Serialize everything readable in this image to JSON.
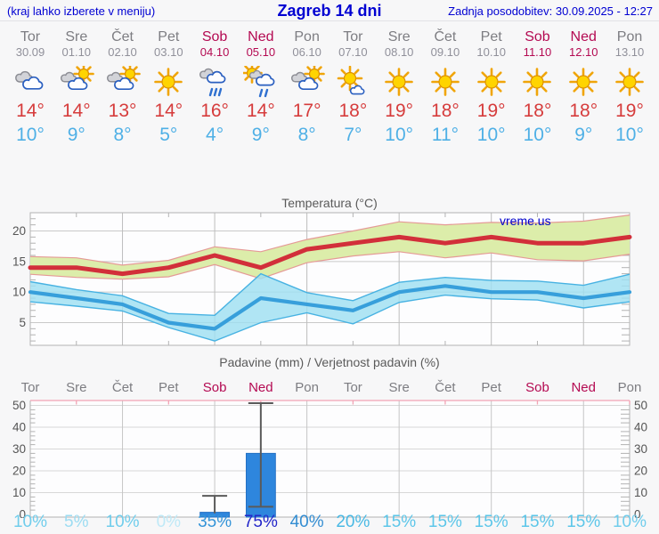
{
  "header": {
    "hint": "(kraj lahko izberete v meniju)",
    "title": "Zagreb 14 dni",
    "updated": "Zadnja posodobitev: 30.09.2025 - 12:27"
  },
  "watermark": "vreme.us",
  "colors": {
    "header_blue": "#0000d2",
    "weekend_day": "#b40a52",
    "weekday_gray": "#7d7d82",
    "tmax_red": "#d63c3c",
    "tmin_blue": "#4fb0e6",
    "red_line": "#d22f3a",
    "red_band_fill": "#dcedaa",
    "red_band_edge": "#e59a96",
    "blue_line": "#379fdb",
    "blue_band_fill": "#9fdff2",
    "blue_band_edge": "#47b2e2",
    "bar_fill": "#2e86dd",
    "bar_edge": "#2571c4",
    "whisker": "#5a5a5a",
    "grid": "#c9c9c9",
    "spine": "#b3b3b3",
    "pink_spine": "#f2a3b4",
    "axis_text": "#555555",
    "plot_bg": "#fdfdfe"
  },
  "days": [
    {
      "name": "Tor",
      "date": "30.09",
      "weekend": false,
      "icon": "cloudy",
      "tmax": "14°",
      "tmin": "10°",
      "prob": "10%",
      "prob_color": "#70cdec"
    },
    {
      "name": "Sre",
      "date": "01.10",
      "weekend": false,
      "icon": "sun-clouds",
      "tmax": "14°",
      "tmin": "9°",
      "prob": "5%",
      "prob_color": "#9cdcf2"
    },
    {
      "name": "Čet",
      "date": "02.10",
      "weekend": false,
      "icon": "sun-clouds",
      "tmax": "13°",
      "tmin": "8°",
      "prob": "10%",
      "prob_color": "#70cdec"
    },
    {
      "name": "Pet",
      "date": "03.10",
      "weekend": false,
      "icon": "sunny",
      "tmax": "14°",
      "tmin": "5°",
      "prob": "0%",
      "prob_color": "#bfe9f7"
    },
    {
      "name": "Sob",
      "date": "04.10",
      "weekend": true,
      "icon": "rain",
      "tmax": "16°",
      "tmin": "4°",
      "prob": "35%",
      "prob_color": "#3494d8"
    },
    {
      "name": "Ned",
      "date": "05.10",
      "weekend": true,
      "icon": "sun-rain",
      "tmax": "14°",
      "tmin": "9°",
      "prob": "75%",
      "prob_color": "#2426c9"
    },
    {
      "name": "Pon",
      "date": "06.10",
      "weekend": false,
      "icon": "sun-clouds",
      "tmax": "17°",
      "tmin": "8°",
      "prob": "40%",
      "prob_color": "#338dd2"
    },
    {
      "name": "Tor",
      "date": "07.10",
      "weekend": false,
      "icon": "sun-small-cloud",
      "tmax": "18°",
      "tmin": "7°",
      "prob": "20%",
      "prob_color": "#49b9e4"
    },
    {
      "name": "Sre",
      "date": "08.10",
      "weekend": false,
      "icon": "sunny",
      "tmax": "19°",
      "tmin": "10°",
      "prob": "15%",
      "prob_color": "#5cc6e9"
    },
    {
      "name": "Čet",
      "date": "09.10",
      "weekend": false,
      "icon": "sunny",
      "tmax": "18°",
      "tmin": "11°",
      "prob": "15%",
      "prob_color": "#5cc6e9"
    },
    {
      "name": "Pet",
      "date": "10.10",
      "weekend": false,
      "icon": "sunny",
      "tmax": "19°",
      "tmin": "10°",
      "prob": "15%",
      "prob_color": "#5cc6e9"
    },
    {
      "name": "Sob",
      "date": "11.10",
      "weekend": true,
      "icon": "sunny",
      "tmax": "18°",
      "tmin": "10°",
      "prob": "15%",
      "prob_color": "#5cc6e9"
    },
    {
      "name": "Ned",
      "date": "12.10",
      "weekend": true,
      "icon": "sunny",
      "tmax": "18°",
      "tmin": "9°",
      "prob": "15%",
      "prob_color": "#5cc6e9"
    },
    {
      "name": "Pon",
      "date": "13.10",
      "weekend": false,
      "icon": "sunny",
      "tmax": "19°",
      "tmin": "10°",
      "prob": "10%",
      "prob_color": "#70cdec"
    }
  ],
  "temp_chart": {
    "title": "Temperatura (°C)",
    "yticks": [
      5,
      10,
      15,
      20
    ]
  },
  "precip_chart": {
    "title": "Padavine (mm) / Verjetnost padavin (%)",
    "yticks": [
      0,
      10,
      20,
      30,
      40,
      50
    ]
  },
  "chart_data": [
    {
      "type": "area",
      "title": "Temperatura (°C)",
      "ylabel": "°C",
      "ylim": [
        1.3,
        23
      ],
      "grid": true,
      "categories": [
        "Tor 30.09",
        "Sre 01.10",
        "Čet 02.10",
        "Pet 03.10",
        "Sob 04.10",
        "Ned 05.10",
        "Pon 06.10",
        "Tor 07.10",
        "Sre 08.10",
        "Čet 09.10",
        "Pet 10.10",
        "Sob 11.10",
        "Ned 12.10",
        "Pon 13.10"
      ],
      "series": [
        {
          "name": "tmax",
          "values": [
            14,
            14,
            13,
            14,
            16,
            14,
            17,
            18,
            19,
            18,
            19,
            18,
            18,
            19
          ]
        },
        {
          "name": "tmax_band_hi",
          "values": [
            15.8,
            15.6,
            14.4,
            15.2,
            17.4,
            16.6,
            18.6,
            20.0,
            21.5,
            21.0,
            21.4,
            21.3,
            21.6,
            22.6
          ]
        },
        {
          "name": "tmax_band_lo",
          "values": [
            12.9,
            12.4,
            12.1,
            12.5,
            14.5,
            12.2,
            14.8,
            15.9,
            16.6,
            15.6,
            16.4,
            15.3,
            15.1,
            16.2
          ]
        },
        {
          "name": "tmin",
          "values": [
            10,
            9,
            8,
            5,
            4,
            9,
            8,
            7,
            10,
            11,
            10,
            10,
            9,
            10
          ]
        },
        {
          "name": "tmin_band_hi",
          "values": [
            11.7,
            10.4,
            9.4,
            6.5,
            6.2,
            13.0,
            9.9,
            8.6,
            11.6,
            12.4,
            11.9,
            11.8,
            11.1,
            12.9
          ]
        },
        {
          "name": "tmin_band_lo",
          "values": [
            8.4,
            7.7,
            6.9,
            4.2,
            2.0,
            5.0,
            6.6,
            4.8,
            8.3,
            9.5,
            8.9,
            8.7,
            7.4,
            8.4
          ]
        }
      ]
    },
    {
      "type": "bar",
      "title": "Padavine (mm) / Verjetnost padavin (%)",
      "ylim": [
        0,
        52
      ],
      "grid": true,
      "categories": [
        "Tor",
        "Sre",
        "Čet",
        "Pet",
        "Sob",
        "Ned",
        "Pon",
        "Tor",
        "Sre",
        "Čet",
        "Pet",
        "Sob",
        "Ned",
        "Pon"
      ],
      "series": [
        {
          "name": "padavine_mm",
          "values": [
            0,
            0,
            0,
            0,
            1,
            28,
            0,
            0,
            0,
            0,
            0,
            0,
            0,
            0
          ]
        },
        {
          "name": "range_lo_mm",
          "values": [
            null,
            null,
            null,
            null,
            0.5,
            3.5,
            null,
            null,
            null,
            null,
            null,
            null,
            null,
            null
          ]
        },
        {
          "name": "range_hi_mm",
          "values": [
            null,
            null,
            null,
            null,
            8.5,
            51,
            null,
            null,
            null,
            null,
            null,
            null,
            null,
            null
          ]
        },
        {
          "name": "verjetnost_pct",
          "values": [
            10,
            5,
            10,
            0,
            35,
            75,
            40,
            20,
            15,
            15,
            15,
            15,
            15,
            10
          ]
        }
      ]
    }
  ]
}
